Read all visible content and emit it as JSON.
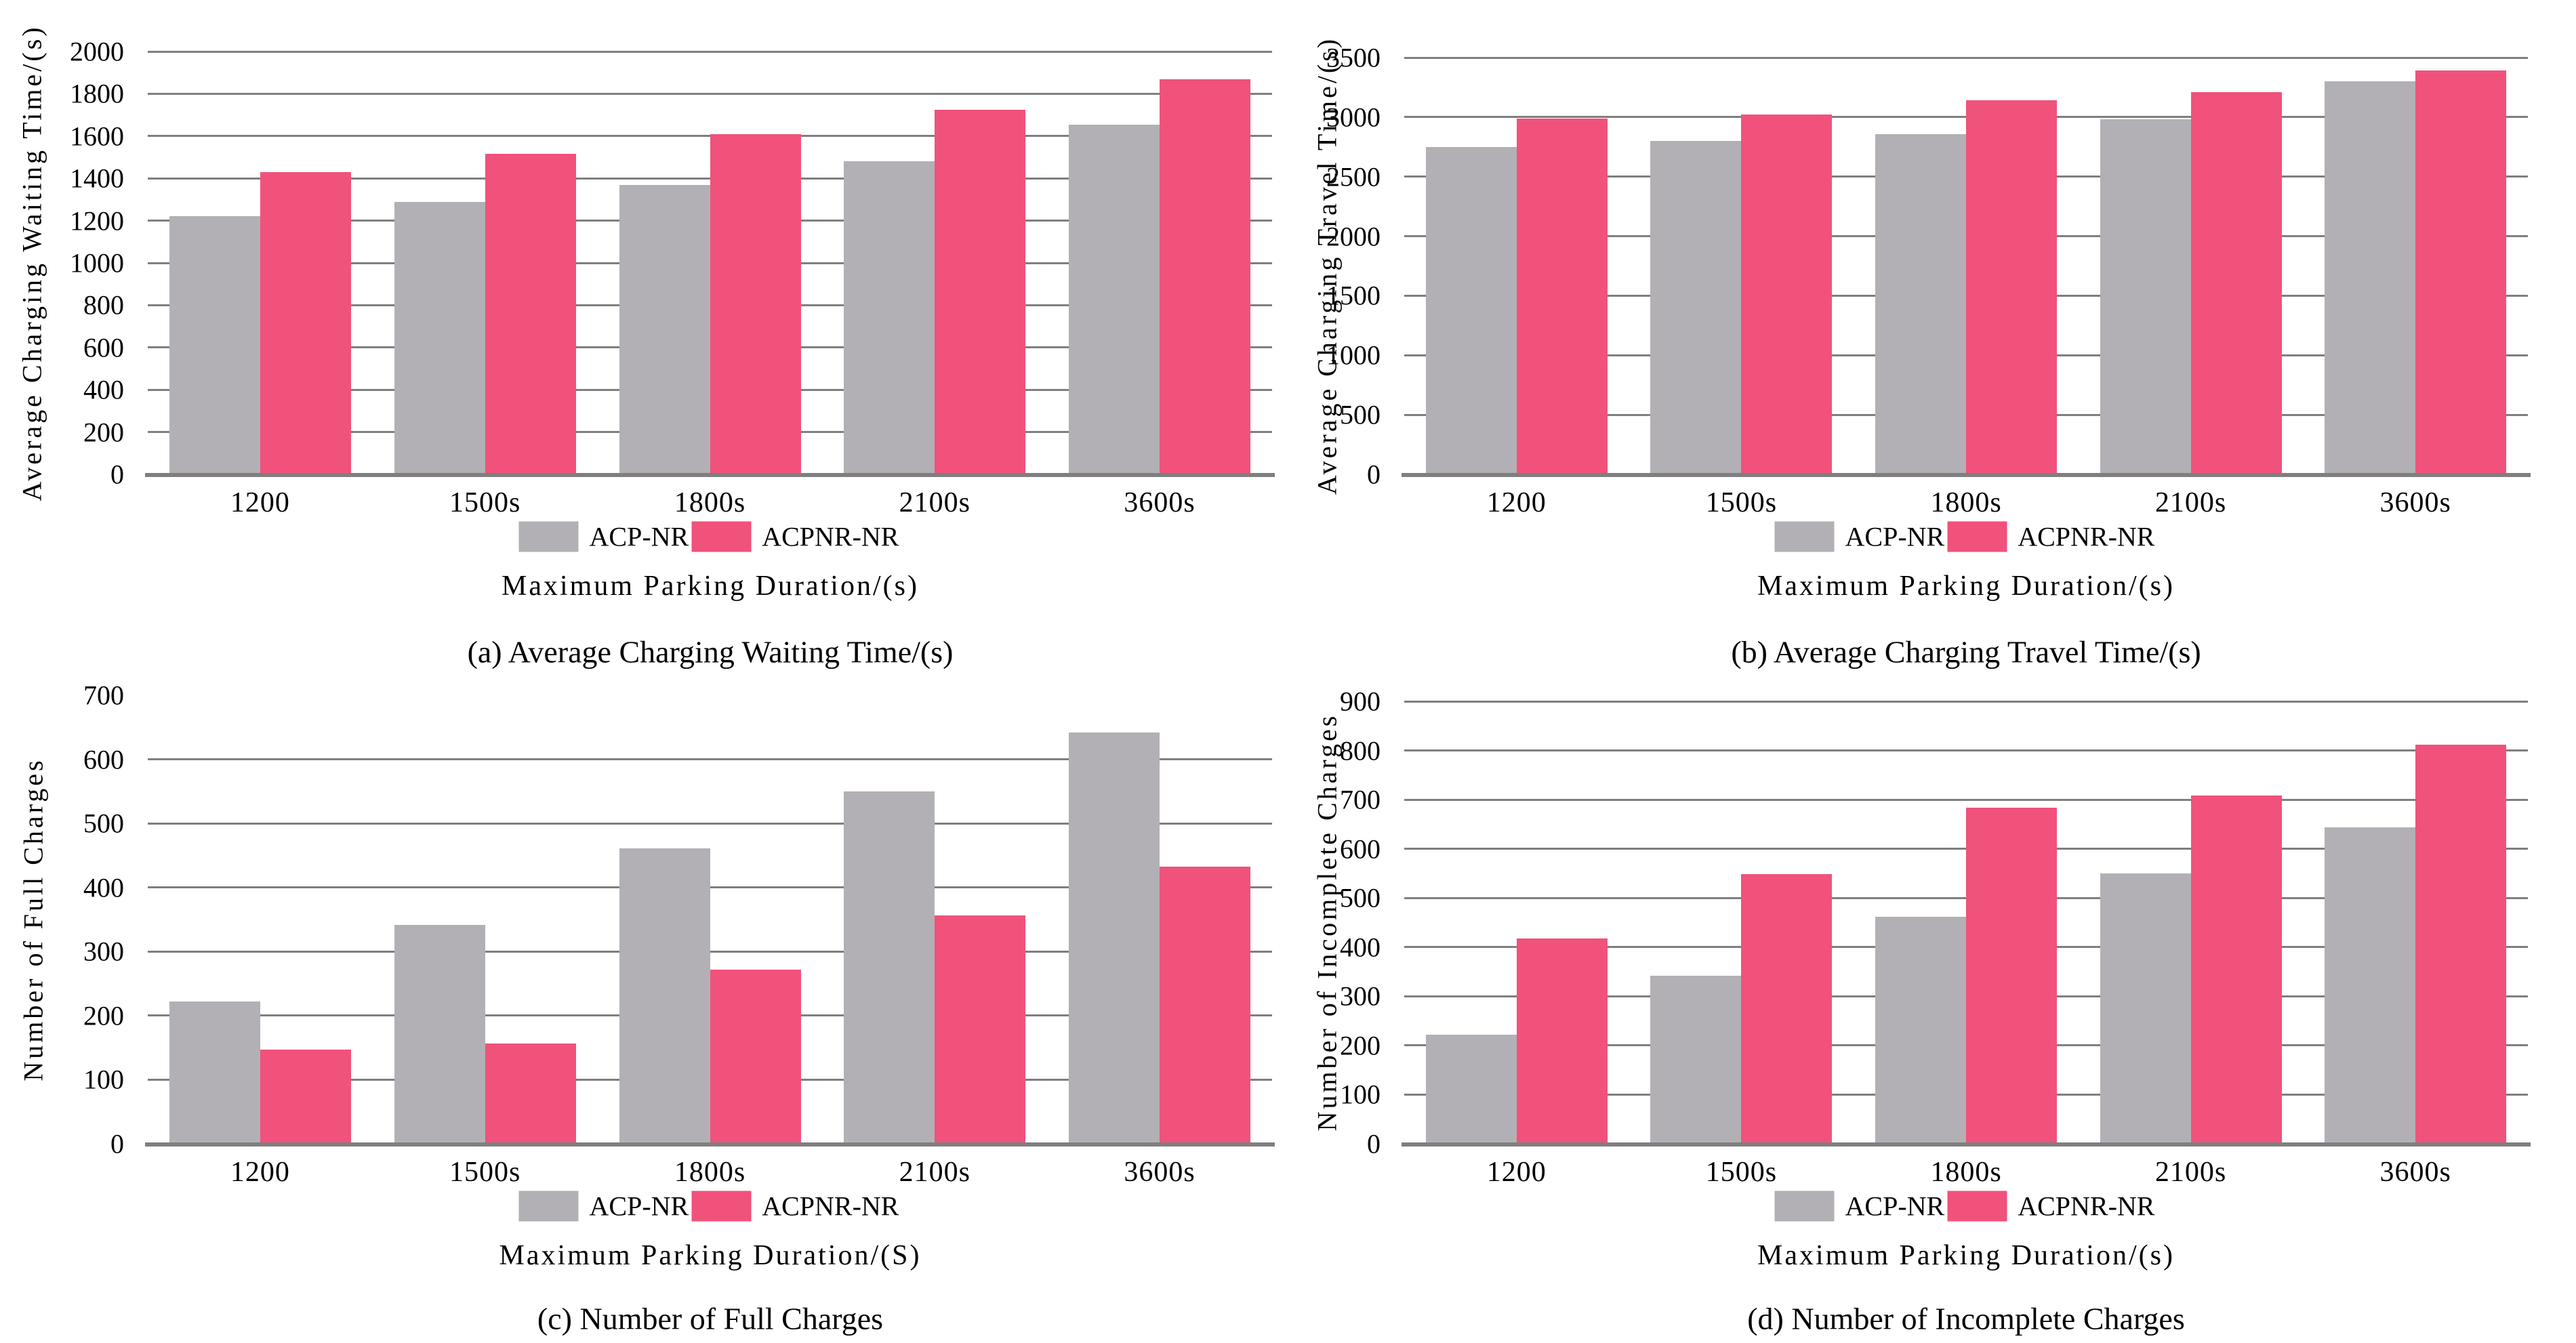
{
  "colors": {
    "bar_gray": "#B3B0B5",
    "bar_pink": "#F0527B",
    "gridline": "#7F7F7F",
    "axis_line": "#7F7F7F",
    "text": "#000000"
  },
  "legend_labels": {
    "gray": "ACP-NR",
    "pink": "ACPNR-NR"
  },
  "chart_data": [
    {
      "id": "a",
      "type": "bar",
      "title": "(a) Average Charging Waiting Time/(s)",
      "ylabel": "Average Charging Waiting Time/(s)",
      "xlabel": "Maximum Parking Duration/(s)",
      "categories": [
        "1200",
        "1500s",
        "1800s",
        "2100s",
        "3600s"
      ],
      "series": [
        {
          "name": "ACP-NR",
          "color_key": "gray",
          "values": [
            1220,
            1290,
            1370,
            1480,
            1655
          ]
        },
        {
          "name": "ACPNR-NR",
          "color_key": "pink",
          "values": [
            1430,
            1515,
            1610,
            1725,
            1870
          ]
        }
      ],
      "ylim": [
        0,
        2000
      ],
      "ytick_step": 200,
      "draw_top_gridline": true,
      "grid": true,
      "legend_position": "bottom"
    },
    {
      "id": "b",
      "type": "bar",
      "title": "(b) Average Charging Travel Time/(s)",
      "ylabel": "Average Charging Travel Time/(s)",
      "xlabel": "Maximum Parking Duration/(s)",
      "categories": [
        "1200",
        "1500s",
        "1800s",
        "2100s",
        "3600s"
      ],
      "series": [
        {
          "name": "ACP-NR",
          "color_key": "gray",
          "values": [
            2750,
            2800,
            2855,
            2980,
            3300
          ]
        },
        {
          "name": "ACPNR-NR",
          "color_key": "pink",
          "values": [
            2990,
            3020,
            3140,
            3210,
            3390
          ]
        }
      ],
      "ylim": [
        0,
        3500
      ],
      "ytick_step": 500,
      "draw_top_gridline": true,
      "grid": true,
      "legend_position": "bottom"
    },
    {
      "id": "c",
      "type": "bar",
      "title": "(c) Number of Full Charges",
      "ylabel": "Number of Full Charges",
      "xlabel": "Maximum Parking Duration/(S)",
      "categories": [
        "1200",
        "1500s",
        "1800s",
        "2100s",
        "3600s"
      ],
      "series": [
        {
          "name": "ACP-NR",
          "color_key": "gray",
          "values": [
            222,
            342,
            461,
            550,
            642
          ]
        },
        {
          "name": "ACPNR-NR",
          "color_key": "pink",
          "values": [
            147,
            156,
            272,
            356,
            432
          ]
        }
      ],
      "ylim": [
        0,
        700
      ],
      "ytick_step": 100,
      "draw_top_gridline": false,
      "grid": true,
      "legend_position": "bottom"
    },
    {
      "id": "d",
      "type": "bar",
      "title": "(d) Number of Incomplete Charges",
      "ylabel": "Number of Incomplete Charges",
      "xlabel": "Maximum Parking Duration/(s)",
      "categories": [
        "1200",
        "1500s",
        "1800s",
        "2100s",
        "3600s"
      ],
      "series": [
        {
          "name": "ACP-NR",
          "color_key": "gray",
          "values": [
            222,
            342,
            462,
            550,
            643
          ]
        },
        {
          "name": "ACPNR-NR",
          "color_key": "pink",
          "values": [
            418,
            548,
            683,
            708,
            812
          ]
        }
      ],
      "ylim": [
        0,
        900
      ],
      "ytick_step": 100,
      "draw_top_gridline": true,
      "grid": true,
      "legend_position": "bottom"
    }
  ]
}
